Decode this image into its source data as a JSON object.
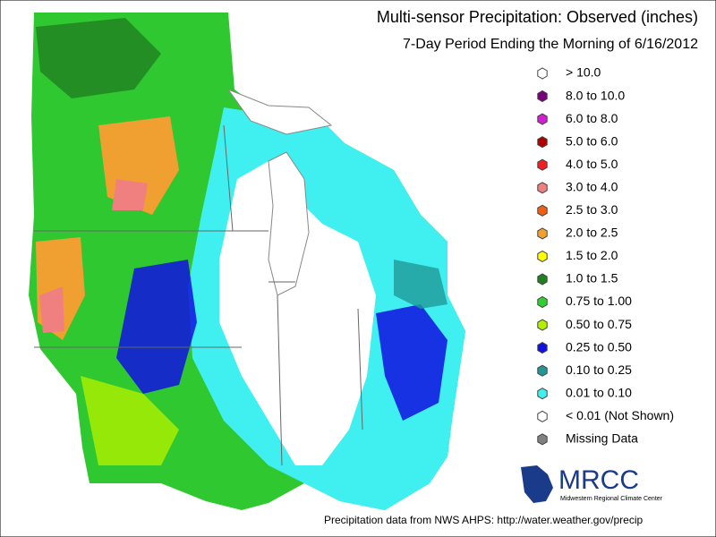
{
  "header": {
    "title": "Multi-sensor Precipitation:  Observed (inches)",
    "subtitle": "7-Day Period Ending the Morning of 6/16/2012"
  },
  "legend": {
    "items": [
      {
        "label": "> 10.0",
        "color": "#ffffff"
      },
      {
        "label": "8.0 to 10.0",
        "color": "#780078"
      },
      {
        "label": "6.0 to 8.0",
        "color": "#d020d0"
      },
      {
        "label": "5.0 to 6.0",
        "color": "#b00000"
      },
      {
        "label": "4.0 to 5.0",
        "color": "#f02020"
      },
      {
        "label": "3.0 to 4.0",
        "color": "#f08080"
      },
      {
        "label": "2.5 to 3.0",
        "color": "#f06010"
      },
      {
        "label": "2.0 to 2.5",
        "color": "#f0a030"
      },
      {
        "label": "1.5 to 2.0",
        "color": "#ffff00"
      },
      {
        "label": "1.0 to 1.5",
        "color": "#208020"
      },
      {
        "label": "0.75 to 1.00",
        "color": "#30d030"
      },
      {
        "label": "0.50 to 0.75",
        "color": "#b0f000"
      },
      {
        "label": "0.25 to 0.50",
        "color": "#1010e0"
      },
      {
        "label": "0.10 to 0.25",
        "color": "#209898"
      },
      {
        "label": "0.01 to 0.10",
        "color": "#40f0f0"
      },
      {
        "label": "< 0.01 (Not Shown)",
        "color": "#ffffff"
      },
      {
        "label": "Missing Data",
        "color": "#808080"
      }
    ]
  },
  "logo": {
    "name": "MRCC",
    "subtitle": "Midwestern Regional Climate Center"
  },
  "footer": "Precipitation data from NWS AHPS:  http://water.weather.gov/precip"
}
